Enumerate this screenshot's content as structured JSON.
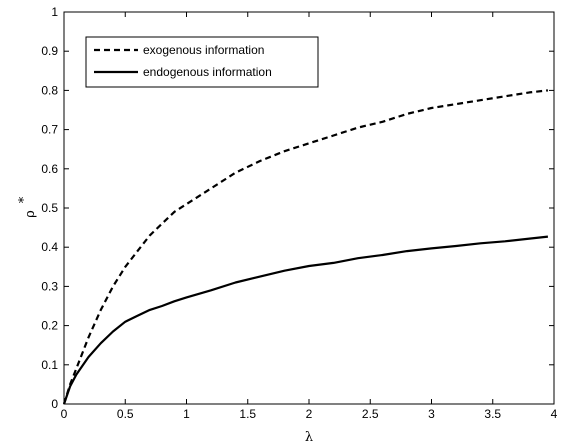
{
  "chart_data": {
    "type": "line",
    "xlabel": "λ",
    "ylabel": "ρ",
    "ylabel_superscript": "*",
    "xlim": [
      0,
      4
    ],
    "ylim": [
      0,
      1
    ],
    "x_ticks": [
      0,
      0.5,
      1,
      1.5,
      2,
      2.5,
      3,
      3.5,
      4
    ],
    "x_tick_labels": [
      "0",
      "0.5",
      "1",
      "1.5",
      "2",
      "2.5",
      "3",
      "3.5",
      "4"
    ],
    "y_ticks": [
      0,
      0.1,
      0.2,
      0.3,
      0.4,
      0.5,
      0.6,
      0.7,
      0.8,
      0.9,
      1
    ],
    "y_tick_labels": [
      "0",
      "0.1",
      "0.2",
      "0.3",
      "0.4",
      "0.5",
      "0.6",
      "0.7",
      "0.8",
      "0.9",
      "1"
    ],
    "grid": false,
    "legend_position": "top-left",
    "series": [
      {
        "name": "exogenous information",
        "style": "dashed",
        "color": "#000000",
        "x": [
          0,
          0.05,
          0.1,
          0.2,
          0.3,
          0.4,
          0.5,
          0.6,
          0.7,
          0.8,
          0.9,
          1.0,
          1.2,
          1.4,
          1.6,
          1.8,
          2.0,
          2.2,
          2.4,
          2.6,
          2.8,
          3.0,
          3.2,
          3.4,
          3.6,
          3.8,
          3.95
        ],
        "y": [
          0,
          0.05,
          0.09,
          0.17,
          0.24,
          0.3,
          0.35,
          0.39,
          0.43,
          0.46,
          0.49,
          0.51,
          0.55,
          0.59,
          0.62,
          0.645,
          0.665,
          0.685,
          0.705,
          0.72,
          0.74,
          0.755,
          0.765,
          0.775,
          0.785,
          0.795,
          0.8
        ]
      },
      {
        "name": "endogenous information",
        "style": "solid",
        "color": "#000000",
        "x": [
          0,
          0.05,
          0.1,
          0.2,
          0.3,
          0.4,
          0.5,
          0.6,
          0.7,
          0.8,
          0.9,
          1.0,
          1.2,
          1.4,
          1.6,
          1.8,
          2.0,
          2.2,
          2.4,
          2.6,
          2.8,
          3.0,
          3.2,
          3.4,
          3.6,
          3.8,
          3.95
        ],
        "y": [
          0,
          0.045,
          0.075,
          0.12,
          0.155,
          0.185,
          0.21,
          0.225,
          0.24,
          0.25,
          0.262,
          0.272,
          0.29,
          0.31,
          0.325,
          0.34,
          0.352,
          0.36,
          0.372,
          0.38,
          0.39,
          0.397,
          0.403,
          0.41,
          0.415,
          0.422,
          0.427
        ]
      }
    ]
  }
}
